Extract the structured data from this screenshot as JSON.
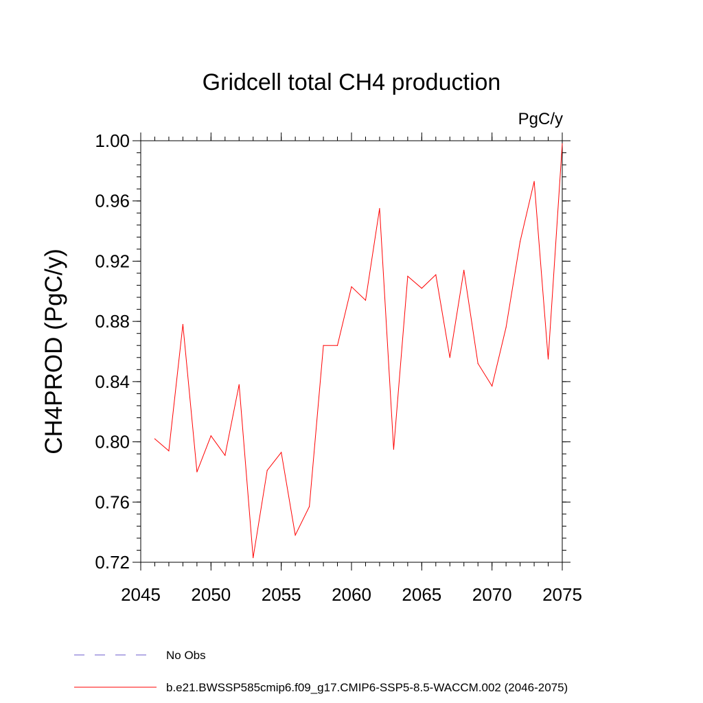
{
  "chart_data": {
    "type": "line",
    "title": "Gridcell total CH4 production",
    "units_label": "PgC/y",
    "ylabel": "CH4PROD  (PgC/y)",
    "xlabel": "",
    "xlim": [
      2045,
      2075
    ],
    "ylim": [
      0.72,
      1.0
    ],
    "x_ticks": [
      "2045",
      "2050",
      "2055",
      "2060",
      "2065",
      "2070",
      "2075"
    ],
    "y_ticks": [
      "0.72",
      "0.76",
      "0.80",
      "0.84",
      "0.88",
      "0.92",
      "0.96",
      "1.00"
    ],
    "grid": false,
    "legend_placement": "bottom",
    "series": [
      {
        "name": "b.e21.BWSSP585cmip6.f09_g17.CMIP6-SSP5-8.5-WACCM.002 (2046-2075)",
        "color": "#ff0000",
        "style": "solid",
        "x": [
          2046,
          2047,
          2048,
          2049,
          2050,
          2051,
          2052,
          2053,
          2054,
          2055,
          2056,
          2057,
          2058,
          2059,
          2060,
          2061,
          2062,
          2063,
          2064,
          2065,
          2066,
          2067,
          2068,
          2069,
          2070,
          2071,
          2072,
          2073,
          2074,
          2075
        ],
        "values": [
          0.802,
          0.794,
          0.878,
          0.78,
          0.804,
          0.791,
          0.838,
          0.723,
          0.781,
          0.793,
          0.738,
          0.757,
          0.864,
          0.864,
          0.903,
          0.894,
          0.955,
          0.795,
          0.91,
          0.902,
          0.911,
          0.856,
          0.914,
          0.852,
          0.837,
          0.876,
          0.933,
          0.973,
          0.855,
          0.998
        ]
      }
    ],
    "legend": [
      {
        "label": "No Obs",
        "color": "#6a5acd",
        "style": "dashed"
      },
      {
        "label": "b.e21.BWSSP585cmip6.f09_g17.CMIP6-SSP5-8.5-WACCM.002 (2046-2075)",
        "color": "#ff0000",
        "style": "solid"
      }
    ]
  }
}
